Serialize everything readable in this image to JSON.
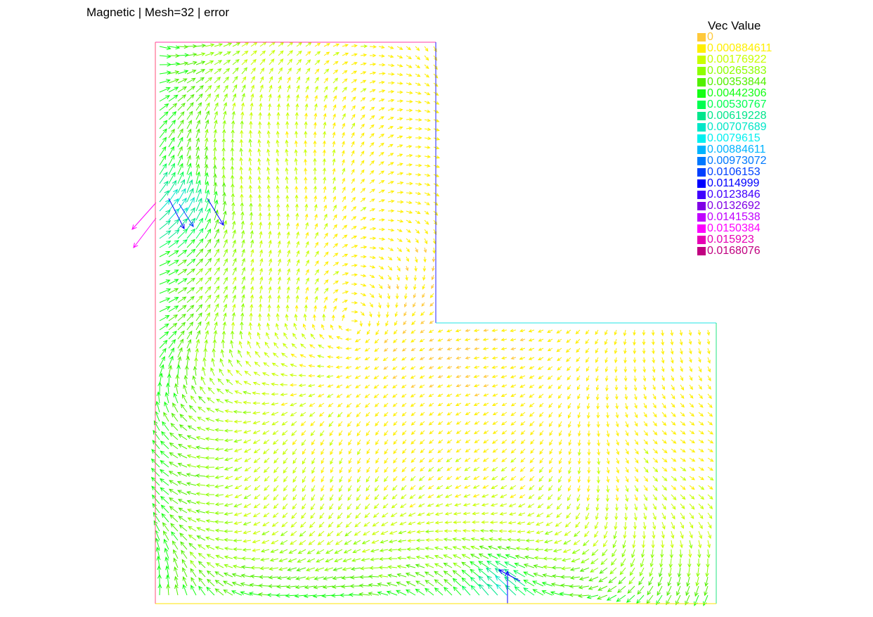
{
  "plot": {
    "title": "Magnetic | Mesh=32 | error"
  },
  "legend": {
    "title": "Vec Value",
    "entries": [
      {
        "label": "0",
        "color": "#ffc93a"
      },
      {
        "label": "0.000884611",
        "color": "#ffef00"
      },
      {
        "label": "0.00176922",
        "color": "#c8ff00"
      },
      {
        "label": "0.00265383",
        "color": "#8dff00"
      },
      {
        "label": "0.00353844",
        "color": "#52f000"
      },
      {
        "label": "0.00442306",
        "color": "#14ff14"
      },
      {
        "label": "0.00530767",
        "color": "#00ff50"
      },
      {
        "label": "0.00619228",
        "color": "#00e68c"
      },
      {
        "label": "0.00707689",
        "color": "#00e6c8"
      },
      {
        "label": "0.0079615",
        "color": "#00f0f0"
      },
      {
        "label": "0.00884611",
        "color": "#00b4ff"
      },
      {
        "label": "0.00973072",
        "color": "#0078ff"
      },
      {
        "label": "0.0106153",
        "color": "#0040ff"
      },
      {
        "label": "0.0114999",
        "color": "#0000ff"
      },
      {
        "label": "0.0123846",
        "color": "#4000ff"
      },
      {
        "label": "0.0132692",
        "color": "#8000e6"
      },
      {
        "label": "0.0141538",
        "color": "#c000ff"
      },
      {
        "label": "0.0150384",
        "color": "#ff00ff"
      },
      {
        "label": "0.015923",
        "color": "#e600b4"
      },
      {
        "label": "0.0168076",
        "color": "#c00080"
      }
    ]
  }
}
